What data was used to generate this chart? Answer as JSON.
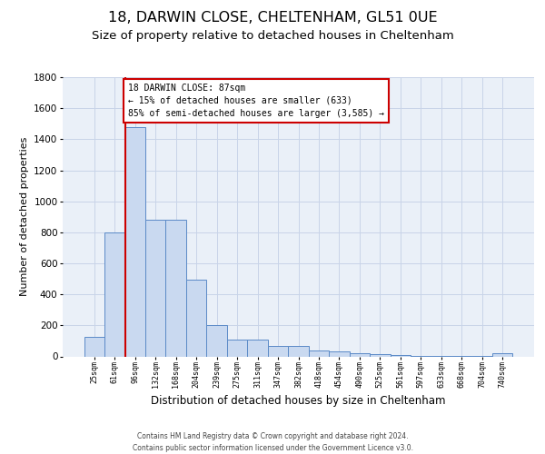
{
  "title1": "18, DARWIN CLOSE, CHELTENHAM, GL51 0UE",
  "title2": "Size of property relative to detached houses in Cheltenham",
  "xlabel": "Distribution of detached houses by size in Cheltenham",
  "ylabel": "Number of detached properties",
  "categories": [
    "25sqm",
    "61sqm",
    "96sqm",
    "132sqm",
    "168sqm",
    "204sqm",
    "239sqm",
    "275sqm",
    "311sqm",
    "347sqm",
    "382sqm",
    "418sqm",
    "454sqm",
    "490sqm",
    "525sqm",
    "561sqm",
    "597sqm",
    "633sqm",
    "668sqm",
    "704sqm",
    "740sqm"
  ],
  "values": [
    125,
    800,
    1480,
    880,
    880,
    495,
    200,
    110,
    110,
    70,
    65,
    40,
    30,
    20,
    15,
    10,
    5,
    5,
    5,
    5,
    20
  ],
  "bar_color": "#c9d9f0",
  "bar_edge_color": "#5b8ac7",
  "grid_color": "#c8d4e8",
  "bg_color": "#eaf0f8",
  "red_line_x": 1.5,
  "annotation_line1": "18 DARWIN CLOSE: 87sqm",
  "annotation_line2": "← 15% of detached houses are smaller (633)",
  "annotation_line3": "85% of semi-detached houses are larger (3,585) →",
  "annotation_box_facecolor": "#ffffff",
  "annotation_box_edgecolor": "#cc0000",
  "footer_line1": "Contains HM Land Registry data © Crown copyright and database right 2024.",
  "footer_line2": "Contains public sector information licensed under the Government Licence v3.0.",
  "ylim_max": 1800,
  "yticks": [
    0,
    200,
    400,
    600,
    800,
    1000,
    1200,
    1400,
    1600,
    1800
  ],
  "title1_fontsize": 11.5,
  "title2_fontsize": 9.5,
  "ylabel_fontsize": 8,
  "xlabel_fontsize": 8.5,
  "xtick_fontsize": 6,
  "ytick_fontsize": 7.5,
  "ann_fontsize": 7,
  "footer_fontsize": 5.5
}
